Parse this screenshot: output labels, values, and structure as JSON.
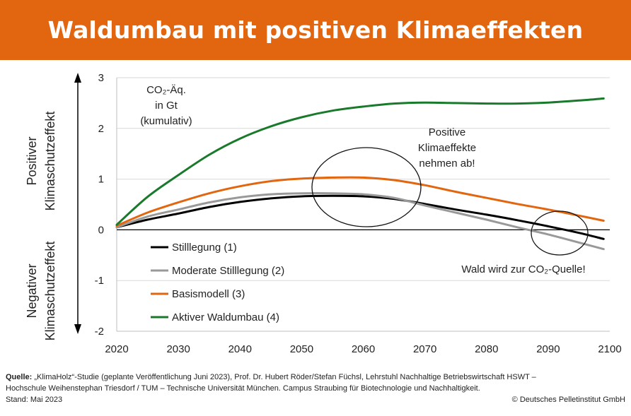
{
  "header": {
    "title": "Waldumbau mit positiven Klimaeffekten"
  },
  "chart_data": {
    "type": "line",
    "title": "Waldumbau mit positiven Klimaeffekten",
    "unit_label": [
      "CO₂-Äq.",
      "in Gt",
      "(kumulativ)"
    ],
    "ylabel_positive": [
      "Positiver",
      "Klimaschutzeffekt"
    ],
    "ylabel_negative": [
      "Negativer",
      "Klimaschutzeffekt"
    ],
    "xlim": [
      2020,
      2100
    ],
    "ylim": [
      -2,
      3
    ],
    "x_ticks": [
      "2020",
      "2030",
      "2040",
      "2050",
      "2060",
      "2070",
      "2080",
      "2090",
      "2100"
    ],
    "y_ticks": [
      "3",
      "2",
      "1",
      "0",
      "-1",
      "-2"
    ],
    "grid": "horizontal",
    "legend_position": "lower-left",
    "x": [
      2020,
      2025,
      2030,
      2035,
      2040,
      2045,
      2050,
      2055,
      2060,
      2065,
      2070,
      2075,
      2080,
      2085,
      2090,
      2095,
      2099
    ],
    "series": [
      {
        "name": "Stilllegung (1)",
        "color": "#000000",
        "values": [
          0.05,
          0.2,
          0.32,
          0.45,
          0.55,
          0.62,
          0.66,
          0.67,
          0.66,
          0.61,
          0.51,
          0.4,
          0.3,
          0.19,
          0.07,
          -0.06,
          -0.18
        ]
      },
      {
        "name": "Moderate Stilllegung (2)",
        "color": "#999999",
        "values": [
          0.05,
          0.26,
          0.4,
          0.54,
          0.64,
          0.7,
          0.72,
          0.72,
          0.7,
          0.63,
          0.48,
          0.34,
          0.2,
          0.05,
          -0.09,
          -0.25,
          -0.38
        ]
      },
      {
        "name": "Basismodell (3)",
        "color": "#e2660f",
        "values": [
          0.08,
          0.34,
          0.54,
          0.72,
          0.86,
          0.96,
          1.01,
          1.03,
          1.03,
          0.98,
          0.88,
          0.75,
          0.63,
          0.51,
          0.4,
          0.28,
          0.18
        ]
      },
      {
        "name": "Aktiver Waldumbau (4)",
        "color": "#1a7a2c",
        "values": [
          0.1,
          0.65,
          1.08,
          1.48,
          1.8,
          2.04,
          2.22,
          2.35,
          2.43,
          2.49,
          2.51,
          2.5,
          2.49,
          2.49,
          2.51,
          2.55,
          2.59
        ]
      }
    ],
    "annotations": {
      "positive": [
        "Positive",
        "Klimaeffekte",
        "nehmen ab!"
      ],
      "source": "Wald wird zur CO₂-Quelle!"
    }
  },
  "footer": {
    "source_label": "Quelle:",
    "source_text": " „KlimaHolz“-Studie (geplante Veröffentlichung Juni 2023), Prof. Dr. Hubert Röder/Stefan Füchsl, Lehrstuhl Nachhaltige Betriebswirtschaft HSWT –",
    "source_line2": "Hochschule Weihenstephan Triesdorf / TUM – Technische Universität München. Campus Straubing für Biotechnologie und Nachhaltigkeit.",
    "stand": "Stand: Mai 2023",
    "copyright": "© Deutsches Pelletinstitut GmbH"
  }
}
